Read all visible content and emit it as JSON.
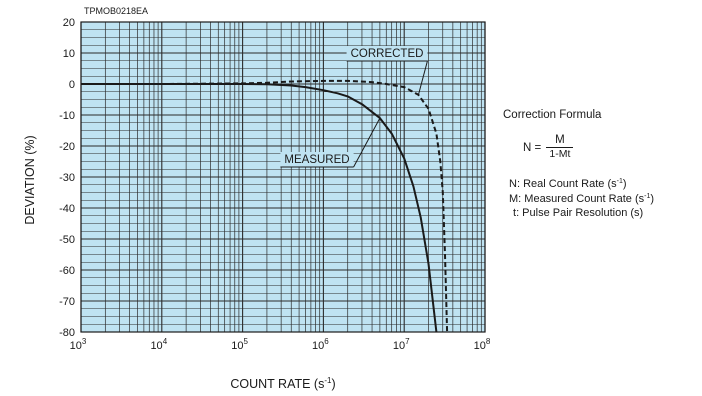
{
  "chart_data": {
    "type": "line",
    "image_code": "TPMOB0218EA",
    "xlabel": "COUNT RATE (s-1)",
    "ylabel": "DEVIATION (%)",
    "x_scale": "log",
    "xlim": [
      1000,
      100000000
    ],
    "ylim": [
      -80,
      20
    ],
    "grid": true,
    "x_ticks": [
      {
        "value": 1000,
        "base": "10",
        "exp": "3"
      },
      {
        "value": 10000,
        "base": "10",
        "exp": "4"
      },
      {
        "value": 100000,
        "base": "10",
        "exp": "5"
      },
      {
        "value": 1000000,
        "base": "10",
        "exp": "6"
      },
      {
        "value": 10000000,
        "base": "10",
        "exp": "7"
      },
      {
        "value": 100000000,
        "base": "10",
        "exp": "8"
      }
    ],
    "y_ticks": [
      20,
      10,
      0,
      -10,
      -20,
      -30,
      -40,
      -50,
      -60,
      -70,
      -80
    ],
    "series": [
      {
        "name": "MEASURED",
        "style": "solid",
        "x": [
          1000,
          10000,
          100000,
          200000,
          400000,
          600000,
          1000000,
          1500000,
          2000000,
          3000000,
          5000000,
          7000000,
          10000000,
          13000000,
          16000000,
          20000000,
          25000000
        ],
        "y": [
          0,
          0,
          0,
          -0.1,
          -0.5,
          -1,
          -2,
          -3,
          -4,
          -6.5,
          -11,
          -16,
          -24,
          -33,
          -43,
          -58,
          -80
        ]
      },
      {
        "name": "CORRECTED",
        "style": "dashed",
        "x": [
          1000,
          10000,
          100000,
          200000,
          400000,
          1000000,
          2000000,
          4000000,
          6000000,
          10000000,
          15000000,
          20000000,
          25000000,
          28000000,
          30000000,
          32000000,
          34000000
        ],
        "y": [
          0,
          0,
          0.2,
          0.4,
          0.8,
          1,
          1,
          0.6,
          0,
          -1,
          -3.5,
          -8,
          -16,
          -25,
          -35,
          -55,
          -80
        ]
      }
    ],
    "annotations": [
      "CORRECTED",
      "MEASURED"
    ]
  },
  "legend": {
    "title": "Correction Formula",
    "formula_lhs": "N =",
    "formula_num": "M",
    "formula_den": "1-Mt",
    "definitions": [
      {
        "sym": "N",
        "text": ": Real Count Rate (s",
        "unit_exp": "-1",
        "close": ")"
      },
      {
        "sym": "M",
        "text": ": Measured Count Rate (s",
        "unit_exp": "-1",
        "close": ")"
      },
      {
        "sym": "t",
        "text": ": Pulse Pair Resolution (s)",
        "unit_exp": "",
        "close": ""
      }
    ]
  },
  "colors": {
    "plot_bg": "#bfe3f2",
    "grid": "#2b2b2b",
    "curve": "#1a1a1a"
  }
}
